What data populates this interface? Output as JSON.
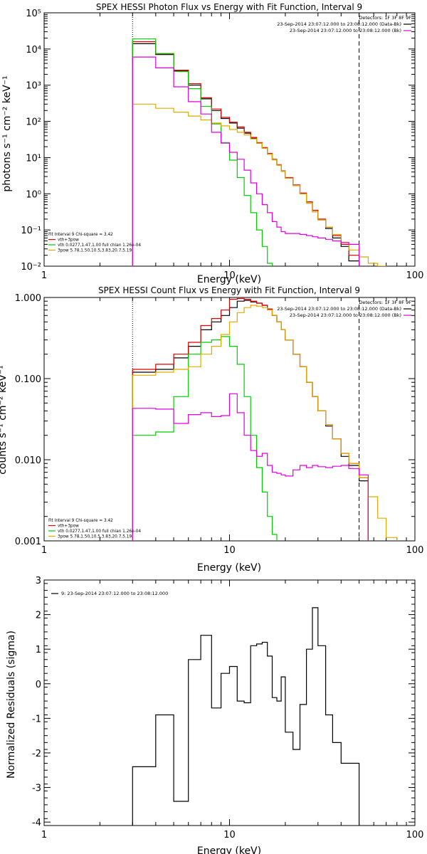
{
  "chart_data": [
    {
      "type": "line",
      "title": "SPEX HESSI Photon Flux vs Energy with Fit Function, Interval 9",
      "xlabel": "Energy (keV)",
      "ylabel": "photons s⁻¹ cm⁻² keV⁻¹",
      "x_scale": "log",
      "y_scale": "log",
      "xlim": [
        1,
        100
      ],
      "ylim": [
        0.01,
        100000
      ],
      "x_ticks": [
        1,
        10,
        100
      ],
      "x_tick_labels": [
        "1",
        "10",
        "100"
      ],
      "y_ticks": [
        0.01,
        0.1,
        1,
        10,
        100,
        1000,
        10000,
        100000
      ],
      "y_tick_labels": [
        "10⁻²",
        "10⁻¹",
        "10⁰",
        "10¹",
        "10²",
        "10³",
        "10⁴",
        "10⁵"
      ],
      "grid": false,
      "legend_position": "top-right",
      "legend": [
        {
          "text": "Detectors: 1F 3F 8F 9F",
          "color": "#000000"
        },
        {
          "text": "23-Sep-2014 23:07:12.000 to 23:08:12.000 (Data-Bk)",
          "color": "#000000"
        },
        {
          "text": "23-Sep-2014 23:07:12.000 to 23:08:12.000 (Bk)",
          "color": "#dd00dd"
        }
      ],
      "fit_legend_position": "bottom-left",
      "fit_legend": [
        {
          "text": "Fit Interval 9   Chi-square = 3.42",
          "color": "#000000"
        },
        {
          "text": "vth+3pow",
          "color": "#dd0000"
        },
        {
          "text": "vth 0.0277,1.47,1.00  full chian 1.26e-04",
          "color": "#00cc00"
        },
        {
          "text": "3pow 5.78,1.50,10.5,3.83,20.7,5.19",
          "color": "#ddaa00"
        }
      ],
      "vlines": [
        {
          "x": 3,
          "style": "dotted",
          "color": "#000000"
        },
        {
          "x": 50,
          "style": "dashed",
          "color": "#000000"
        }
      ],
      "x_edges": [
        3,
        4,
        5,
        6,
        7,
        8,
        9,
        10,
        11,
        12,
        13,
        14,
        15,
        16,
        17,
        18,
        19,
        20,
        22,
        24,
        26,
        28,
        30,
        33,
        36,
        40,
        44,
        50,
        56,
        63,
        70,
        80
      ],
      "series": [
        {
          "name": "Data-Bk",
          "color": "#000000",
          "values": [
            14000,
            7000,
            2500,
            1000,
            420,
            200,
            120,
            90,
            65,
            47,
            34,
            25,
            18,
            12.5,
            8.7,
            6.2,
            4.2,
            2.7,
            1.7,
            1.0,
            0.55,
            0.32,
            0.19,
            0.11,
            0.06,
            0.035,
            0.014,
            null,
            null,
            null,
            null
          ]
        },
        {
          "name": "vth+3pow",
          "color": "#dd0000",
          "values": [
            16000,
            7400,
            2600,
            1100,
            450,
            220,
            130,
            95,
            70,
            50,
            36,
            26,
            19,
            13,
            9.0,
            6.4,
            4.3,
            2.8,
            1.75,
            1.05,
            0.6,
            0.35,
            0.2,
            0.12,
            0.07,
            0.04,
            0.02,
            null,
            null,
            null,
            null
          ]
        },
        {
          "name": "vth",
          "color": "#00cc00",
          "values": [
            19000,
            7500,
            2400,
            800,
            260,
            85,
            26,
            8.5,
            2.8,
            0.9,
            0.3,
            0.1,
            0.035,
            0.012,
            null,
            null,
            null,
            null,
            null,
            null,
            null,
            null,
            null,
            null,
            null,
            null,
            null,
            null,
            null,
            null,
            null
          ]
        },
        {
          "name": "3pow",
          "color": "#ddaa00",
          "values": [
            300,
            230,
            180,
            140,
            110,
            90,
            75,
            60,
            50,
            42,
            33,
            25,
            18,
            12.5,
            8.7,
            6.2,
            4.2,
            2.7,
            1.7,
            1.0,
            0.55,
            0.32,
            0.19,
            0.12,
            0.075,
            0.046,
            0.028,
            0.018,
            0.012,
            0.01,
            null
          ]
        },
        {
          "name": "Bk",
          "color": "#dd00dd",
          "values": [
            6000,
            3000,
            900,
            350,
            160,
            50,
            25,
            14,
            9,
            4.5,
            2.0,
            1.0,
            0.5,
            0.3,
            0.17,
            0.12,
            0.09,
            0.08,
            0.08,
            0.075,
            0.07,
            0.065,
            0.06,
            0.055,
            0.05,
            0.045,
            0.04,
            null,
            null,
            null,
            null
          ]
        }
      ]
    },
    {
      "type": "line",
      "title": "SPEX HESSI Count Flux vs Energy with Fit Function, Interval 9",
      "xlabel": "Energy (keV)",
      "ylabel": "counts s⁻¹ cm⁻² keV⁻¹",
      "x_scale": "log",
      "y_scale": "log",
      "xlim": [
        1,
        100
      ],
      "ylim": [
        0.001,
        1
      ],
      "x_ticks": [
        1,
        10,
        100
      ],
      "x_tick_labels": [
        "1",
        "10",
        "100"
      ],
      "y_ticks": [
        0.001,
        0.01,
        0.1,
        1
      ],
      "y_tick_labels": [
        "0.001",
        "0.010",
        "0.100",
        "1.000"
      ],
      "grid": false,
      "legend_position": "top-right",
      "legend": [
        {
          "text": "Detectors: 1F 3F 8F 9F",
          "color": "#000000"
        },
        {
          "text": "23-Sep-2014 23:07:12.000 to 23:08:12.000 (Data-Bk)",
          "color": "#000000"
        },
        {
          "text": "23-Sep-2014 23:07:12.000 to 23:08:12.000 (Bk)",
          "color": "#dd00dd"
        }
      ],
      "fit_legend_position": "bottom-left",
      "fit_legend": [
        {
          "text": "Fit Interval 9   Chi-square = 3.42",
          "color": "#000000"
        },
        {
          "text": "vth+3pow",
          "color": "#dd0000"
        },
        {
          "text": "vth 0.0277,1.47,1.00  full chian 1.26e-04",
          "color": "#00cc00"
        },
        {
          "text": "3pow 5.78,1.50,10.5,3.83,20.7,5.19",
          "color": "#ddaa00"
        }
      ],
      "vlines": [
        {
          "x": 3,
          "style": "dotted",
          "color": "#000000"
        },
        {
          "x": 50,
          "style": "dashed",
          "color": "#000000"
        }
      ],
      "x_edges": [
        3,
        4,
        5,
        6,
        7,
        8,
        9,
        10,
        11,
        12,
        13,
        14,
        15,
        16,
        17,
        18,
        19,
        20,
        22,
        24,
        26,
        28,
        30,
        33,
        36,
        40,
        44,
        50,
        56,
        63,
        70,
        80
      ],
      "series": [
        {
          "name": "Data-Bk",
          "color": "#000000",
          "values": [
            0.12,
            0.13,
            0.18,
            0.25,
            0.4,
            0.5,
            0.6,
            0.75,
            0.9,
            0.92,
            0.88,
            0.85,
            0.8,
            0.72,
            0.6,
            0.5,
            0.4,
            0.3,
            0.2,
            0.14,
            0.09,
            0.06,
            0.04,
            0.026,
            0.018,
            0.011,
            0.0085,
            0.0055,
            null,
            null,
            null
          ]
        },
        {
          "name": "vth+3pow",
          "color": "#dd0000",
          "values": [
            0.13,
            0.15,
            0.2,
            0.28,
            0.45,
            0.55,
            0.7,
            0.95,
            0.97,
            0.95,
            0.9,
            0.85,
            0.8,
            0.72,
            0.6,
            0.5,
            0.4,
            0.3,
            0.2,
            0.14,
            0.09,
            0.06,
            0.04,
            0.027,
            0.018,
            0.012,
            0.009,
            0.006,
            null,
            null,
            null
          ]
        },
        {
          "name": "vth",
          "color": "#00cc00",
          "values": [
            0.02,
            0.022,
            0.06,
            0.2,
            0.28,
            0.3,
            0.33,
            0.25,
            0.15,
            0.06,
            0.02,
            0.008,
            0.004,
            0.002,
            0.0012,
            null,
            null,
            null,
            null,
            null,
            null,
            null,
            null,
            null,
            null,
            null,
            null,
            null,
            null,
            null,
            null
          ]
        },
        {
          "name": "3pow",
          "color": "#ddaa00",
          "values": [
            0.11,
            0.12,
            0.13,
            0.14,
            0.2,
            0.25,
            0.35,
            0.5,
            0.65,
            0.75,
            0.8,
            0.78,
            0.75,
            0.7,
            0.6,
            0.5,
            0.4,
            0.3,
            0.2,
            0.14,
            0.09,
            0.06,
            0.04,
            0.027,
            0.018,
            0.012,
            0.009,
            0.006,
            0.0035,
            0.0019,
            0.0011
          ]
        },
        {
          "name": "Bk",
          "color": "#dd00dd",
          "values": [
            0.043,
            0.042,
            0.028,
            0.036,
            0.038,
            0.034,
            0.035,
            0.065,
            0.038,
            0.02,
            0.013,
            0.011,
            0.012,
            0.0085,
            0.007,
            0.0068,
            0.0065,
            0.0063,
            0.0075,
            0.0085,
            0.008,
            0.0085,
            0.0082,
            0.008,
            0.0083,
            0.0085,
            0.0078,
            0.0065,
            null,
            null,
            null
          ]
        }
      ]
    },
    {
      "type": "line",
      "title": "",
      "xlabel": "Energy (keV)",
      "ylabel": "Normalized Residuals (sigma)",
      "x_scale": "log",
      "y_scale": "linear",
      "xlim": [
        1,
        100
      ],
      "ylim": [
        -4.1,
        3
      ],
      "x_ticks": [
        1,
        10,
        100
      ],
      "x_tick_labels": [
        "1",
        "10",
        "100"
      ],
      "y_ticks": [
        -4,
        -3,
        -2,
        -1,
        0,
        1,
        2,
        3
      ],
      "y_tick_labels": [
        "-4",
        "-3",
        "-2",
        "-1",
        "0",
        "1",
        "2",
        "3"
      ],
      "grid": false,
      "legend_position": "top-left",
      "legend": [
        {
          "text": "9: 23-Sep-2014 23:07:12.000 to 23:08:12.000",
          "color": "#000000"
        }
      ],
      "x_edges": [
        3,
        4,
        5,
        6,
        7,
        8,
        9,
        10,
        11,
        12,
        13,
        14,
        15,
        16,
        17,
        18,
        19,
        20,
        22,
        24,
        26,
        28,
        30,
        33,
        36,
        40,
        44,
        50
      ],
      "series": [
        {
          "name": "residuals",
          "color": "#000000",
          "values": [
            -2.4,
            -0.9,
            -3.4,
            0.7,
            1.4,
            -0.7,
            0.3,
            0.5,
            -0.5,
            -0.55,
            1.1,
            1.15,
            1.2,
            0.8,
            -0.4,
            -0.5,
            0.2,
            -1.4,
            -1.9,
            -0.6,
            1.0,
            2.2,
            1.1,
            -0.9,
            -1.7,
            -2.3,
            -2.3
          ]
        }
      ]
    }
  ]
}
